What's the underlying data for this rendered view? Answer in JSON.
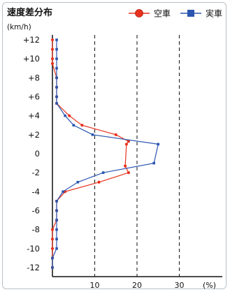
{
  "chart_data": {
    "type": "line",
    "title": "速度差分布",
    "ylabel": "(km/h)",
    "xlabel": "(%)",
    "x_ticks": [
      "10",
      "20",
      "30"
    ],
    "y_ticks": [
      "+12",
      "+10",
      "+8",
      "+6",
      "+4",
      "+2",
      "0",
      "-2",
      "-4",
      "-6",
      "-8",
      "-10",
      "-12"
    ],
    "xlim": [
      0,
      40
    ],
    "ylim": [
      -12,
      12
    ],
    "grid": "vertical dashed at 10, 20, 30",
    "legend_position": "top-right",
    "series": [
      {
        "name": "空車",
        "color": "#e8321e",
        "marker": "circle",
        "points": [
          [
            0,
            12
          ],
          [
            0,
            11
          ],
          [
            0,
            10
          ],
          [
            0,
            9.5
          ],
          [
            1,
            8
          ],
          [
            1,
            7
          ],
          [
            1,
            6
          ],
          [
            1,
            5.3
          ],
          [
            4,
            4
          ],
          [
            7,
            3
          ],
          [
            15,
            2
          ],
          [
            18,
            1.3
          ],
          [
            17.5,
            1
          ],
          [
            17.2,
            -1.3
          ],
          [
            18,
            -2
          ],
          [
            11,
            -3
          ],
          [
            3,
            -4
          ],
          [
            1,
            -5
          ],
          [
            1,
            -6
          ],
          [
            1,
            -7
          ],
          [
            0,
            -8
          ],
          [
            0,
            -9
          ],
          [
            0,
            -10
          ],
          [
            0,
            -11
          ],
          [
            0,
            -12
          ]
        ]
      },
      {
        "name": "実車",
        "color": "#2a55b0",
        "marker": "square",
        "points": [
          [
            1,
            12
          ],
          [
            1,
            11
          ],
          [
            1,
            10
          ],
          [
            1,
            9
          ],
          [
            1,
            8
          ],
          [
            1,
            7
          ],
          [
            1,
            6
          ],
          [
            1,
            5.3
          ],
          [
            3,
            4
          ],
          [
            5,
            3
          ],
          [
            9.5,
            2
          ],
          [
            25,
            1
          ],
          [
            24,
            -1
          ],
          [
            12,
            -2
          ],
          [
            6,
            -3
          ],
          [
            2.5,
            -4
          ],
          [
            1,
            -5
          ],
          [
            1,
            -6
          ],
          [
            1,
            -7
          ],
          [
            1,
            -8
          ],
          [
            1,
            -9
          ],
          [
            1,
            -10
          ],
          [
            0,
            -11
          ],
          [
            0,
            -12
          ]
        ]
      }
    ]
  }
}
